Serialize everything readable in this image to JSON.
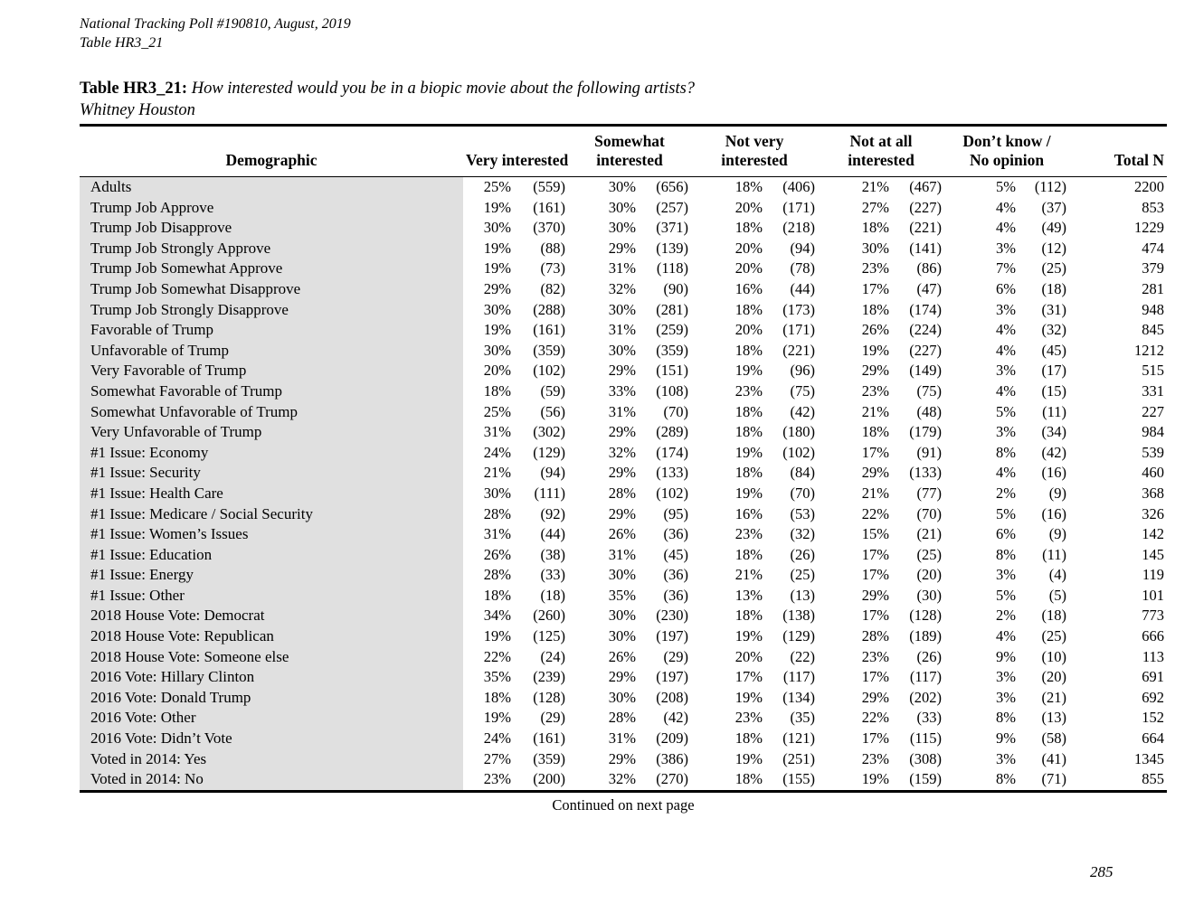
{
  "document": {
    "header_line1": "National Tracking Poll #190810, August, 2019",
    "header_line2": "Table HR3_21",
    "title_label": "Table HR3_21:",
    "title_question": "How interested would you be in a biopic movie about the following artists?",
    "title_subject": "Whitney Houston",
    "continued_note": "Continued on next page",
    "page_number": "285"
  },
  "colors": {
    "demographic_column_shade": "#e0e0e0",
    "rule_color": "#000000"
  },
  "table": {
    "headers": {
      "demographic": "Demographic",
      "very": "Very interested",
      "somewhat": [
        "Somewhat",
        "interested"
      ],
      "not_very": [
        "Not very",
        "interested"
      ],
      "not_at_all": [
        "Not at all",
        "interested"
      ],
      "dont_know": [
        "Don’t know /",
        "No opinion"
      ],
      "total": "Total N"
    },
    "row_cell_names": [
      "demographic-cell",
      "very-interested-pct",
      "very-interested-n",
      "somewhat-interested-pct",
      "somewhat-interested-n",
      "not-very-interested-pct",
      "not-very-interested-n",
      "not-at-all-interested-pct",
      "not-at-all-interested-n",
      "dont-know-pct",
      "dont-know-n",
      "total-n"
    ],
    "rows": [
      [
        "Adults",
        "25%",
        "(559)",
        "30%",
        "(656)",
        "18%",
        "(406)",
        "21%",
        "(467)",
        "5%",
        "(112)",
        "2200"
      ],
      [
        "Trump Job Approve",
        "19%",
        "(161)",
        "30%",
        "(257)",
        "20%",
        "(171)",
        "27%",
        "(227)",
        "4%",
        "(37)",
        "853"
      ],
      [
        "Trump Job Disapprove",
        "30%",
        "(370)",
        "30%",
        "(371)",
        "18%",
        "(218)",
        "18%",
        "(221)",
        "4%",
        "(49)",
        "1229"
      ],
      [
        "Trump Job Strongly Approve",
        "19%",
        "(88)",
        "29%",
        "(139)",
        "20%",
        "(94)",
        "30%",
        "(141)",
        "3%",
        "(12)",
        "474"
      ],
      [
        "Trump Job Somewhat Approve",
        "19%",
        "(73)",
        "31%",
        "(118)",
        "20%",
        "(78)",
        "23%",
        "(86)",
        "7%",
        "(25)",
        "379"
      ],
      [
        "Trump Job Somewhat Disapprove",
        "29%",
        "(82)",
        "32%",
        "(90)",
        "16%",
        "(44)",
        "17%",
        "(47)",
        "6%",
        "(18)",
        "281"
      ],
      [
        "Trump Job Strongly Disapprove",
        "30%",
        "(288)",
        "30%",
        "(281)",
        "18%",
        "(173)",
        "18%",
        "(174)",
        "3%",
        "(31)",
        "948"
      ],
      [
        "Favorable of Trump",
        "19%",
        "(161)",
        "31%",
        "(259)",
        "20%",
        "(171)",
        "26%",
        "(224)",
        "4%",
        "(32)",
        "845"
      ],
      [
        "Unfavorable of Trump",
        "30%",
        "(359)",
        "30%",
        "(359)",
        "18%",
        "(221)",
        "19%",
        "(227)",
        "4%",
        "(45)",
        "1212"
      ],
      [
        "Very Favorable of Trump",
        "20%",
        "(102)",
        "29%",
        "(151)",
        "19%",
        "(96)",
        "29%",
        "(149)",
        "3%",
        "(17)",
        "515"
      ],
      [
        "Somewhat Favorable of Trump",
        "18%",
        "(59)",
        "33%",
        "(108)",
        "23%",
        "(75)",
        "23%",
        "(75)",
        "4%",
        "(15)",
        "331"
      ],
      [
        "Somewhat Unfavorable of Trump",
        "25%",
        "(56)",
        "31%",
        "(70)",
        "18%",
        "(42)",
        "21%",
        "(48)",
        "5%",
        "(11)",
        "227"
      ],
      [
        "Very Unfavorable of Trump",
        "31%",
        "(302)",
        "29%",
        "(289)",
        "18%",
        "(180)",
        "18%",
        "(179)",
        "3%",
        "(34)",
        "984"
      ],
      [
        "#1 Issue: Economy",
        "24%",
        "(129)",
        "32%",
        "(174)",
        "19%",
        "(102)",
        "17%",
        "(91)",
        "8%",
        "(42)",
        "539"
      ],
      [
        "#1 Issue: Security",
        "21%",
        "(94)",
        "29%",
        "(133)",
        "18%",
        "(84)",
        "29%",
        "(133)",
        "4%",
        "(16)",
        "460"
      ],
      [
        "#1 Issue: Health Care",
        "30%",
        "(111)",
        "28%",
        "(102)",
        "19%",
        "(70)",
        "21%",
        "(77)",
        "2%",
        "(9)",
        "368"
      ],
      [
        "#1 Issue: Medicare / Social Security",
        "28%",
        "(92)",
        "29%",
        "(95)",
        "16%",
        "(53)",
        "22%",
        "(70)",
        "5%",
        "(16)",
        "326"
      ],
      [
        "#1 Issue: Women’s Issues",
        "31%",
        "(44)",
        "26%",
        "(36)",
        "23%",
        "(32)",
        "15%",
        "(21)",
        "6%",
        "(9)",
        "142"
      ],
      [
        "#1 Issue: Education",
        "26%",
        "(38)",
        "31%",
        "(45)",
        "18%",
        "(26)",
        "17%",
        "(25)",
        "8%",
        "(11)",
        "145"
      ],
      [
        "#1 Issue: Energy",
        "28%",
        "(33)",
        "30%",
        "(36)",
        "21%",
        "(25)",
        "17%",
        "(20)",
        "3%",
        "(4)",
        "119"
      ],
      [
        "#1 Issue: Other",
        "18%",
        "(18)",
        "35%",
        "(36)",
        "13%",
        "(13)",
        "29%",
        "(30)",
        "5%",
        "(5)",
        "101"
      ],
      [
        "2018 House Vote: Democrat",
        "34%",
        "(260)",
        "30%",
        "(230)",
        "18%",
        "(138)",
        "17%",
        "(128)",
        "2%",
        "(18)",
        "773"
      ],
      [
        "2018 House Vote: Republican",
        "19%",
        "(125)",
        "30%",
        "(197)",
        "19%",
        "(129)",
        "28%",
        "(189)",
        "4%",
        "(25)",
        "666"
      ],
      [
        "2018 House Vote: Someone else",
        "22%",
        "(24)",
        "26%",
        "(29)",
        "20%",
        "(22)",
        "23%",
        "(26)",
        "9%",
        "(10)",
        "113"
      ],
      [
        "2016 Vote: Hillary Clinton",
        "35%",
        "(239)",
        "29%",
        "(197)",
        "17%",
        "(117)",
        "17%",
        "(117)",
        "3%",
        "(20)",
        "691"
      ],
      [
        "2016 Vote: Donald Trump",
        "18%",
        "(128)",
        "30%",
        "(208)",
        "19%",
        "(134)",
        "29%",
        "(202)",
        "3%",
        "(21)",
        "692"
      ],
      [
        "2016 Vote: Other",
        "19%",
        "(29)",
        "28%",
        "(42)",
        "23%",
        "(35)",
        "22%",
        "(33)",
        "8%",
        "(13)",
        "152"
      ],
      [
        "2016 Vote: Didn’t Vote",
        "24%",
        "(161)",
        "31%",
        "(209)",
        "18%",
        "(121)",
        "17%",
        "(115)",
        "9%",
        "(58)",
        "664"
      ],
      [
        "Voted in 2014: Yes",
        "27%",
        "(359)",
        "29%",
        "(386)",
        "19%",
        "(251)",
        "23%",
        "(308)",
        "3%",
        "(41)",
        "1345"
      ],
      [
        "Voted in 2014: No",
        "23%",
        "(200)",
        "32%",
        "(270)",
        "18%",
        "(155)",
        "19%",
        "(159)",
        "8%",
        "(71)",
        "855"
      ]
    ]
  }
}
